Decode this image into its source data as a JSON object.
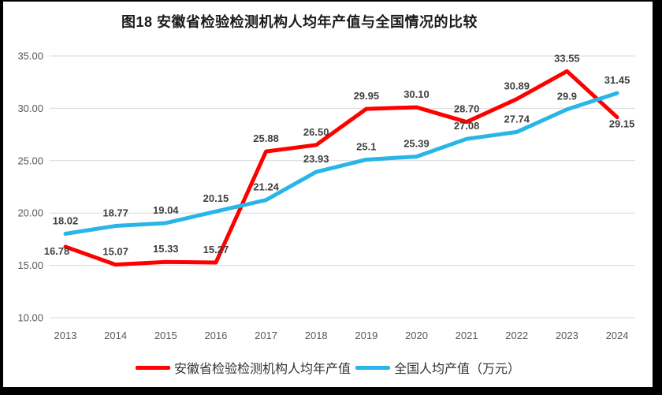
{
  "title": "图18 安徽省检验检测机构人均年产值与全国情况的比较",
  "chart_data": {
    "type": "line",
    "title": "图18 安徽省检验检测机构人均年产值与全国情况的比较",
    "categories": [
      "2013",
      "2014",
      "2015",
      "2016",
      "2017",
      "2018",
      "2019",
      "2020",
      "2021",
      "2022",
      "2023",
      "2024"
    ],
    "series": [
      {
        "name": "安徽省检验检测机构人均年产值",
        "color": "#FF0000",
        "values": [
          16.78,
          15.07,
          15.33,
          15.27,
          25.88,
          26.5,
          29.95,
          30.1,
          28.7,
          30.89,
          33.55,
          29.15
        ],
        "labels": [
          "16.78",
          "15.07",
          "15.33",
          "15.27",
          "25.88",
          "26.50",
          "29.95",
          "30.10",
          "28.70",
          "30.89",
          "33.55",
          "29.15"
        ]
      },
      {
        "name": "全国人均产值（万元）",
        "color": "#29B5E8",
        "values": [
          18.02,
          18.77,
          19.04,
          20.15,
          21.24,
          23.93,
          25.1,
          25.39,
          27.08,
          27.74,
          29.9,
          31.45
        ],
        "labels": [
          "18.02",
          "18.77",
          "19.04",
          "20.15",
          "21.24",
          "23.93",
          "25.1",
          "25.39",
          "27.08",
          "27.74",
          "29.9",
          "31.45"
        ]
      }
    ],
    "xlabel": "",
    "ylabel": "",
    "ylim": [
      10,
      35
    ],
    "yticks": [
      {
        "label": "35.00",
        "value": 35
      },
      {
        "label": "30.00",
        "value": 30
      },
      {
        "label": "25.00",
        "value": 25
      },
      {
        "label": "20.00",
        "value": 20
      },
      {
        "label": "15.00",
        "value": 15
      },
      {
        "label": "10.00",
        "value": 10
      }
    ],
    "grid": "horizontal",
    "gridline_color": "#D9D9D9",
    "axis_text_color": "#595959",
    "data_label_color": "#3F3F3F",
    "legend_position": "bottom",
    "line_width": 5,
    "label_offsets": {
      "0": {
        "0": [
          -11,
          10
        ],
        "11": [
          6,
          13
        ]
      }
    }
  }
}
